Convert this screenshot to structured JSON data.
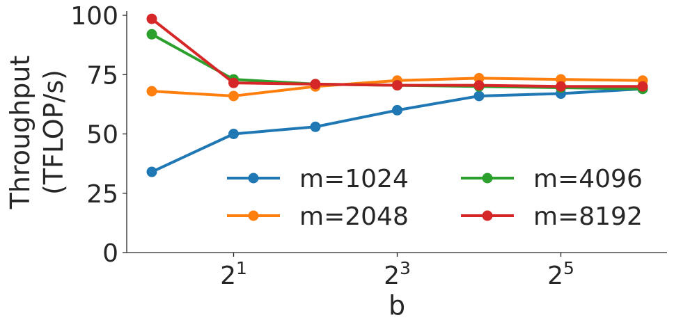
{
  "chart_data": {
    "type": "line",
    "title": "",
    "xlabel": "b",
    "ylabel": [
      "Throughput",
      "(TFLOP/s)"
    ],
    "x": [
      1,
      2,
      4,
      8,
      16,
      32,
      64
    ],
    "xscale": "log2",
    "xticks": [
      {
        "value": 2,
        "base": "2",
        "exp": "1"
      },
      {
        "value": 8,
        "base": "2",
        "exp": "3"
      },
      {
        "value": 32,
        "base": "2",
        "exp": "5"
      }
    ],
    "yticks": [
      0,
      25,
      50,
      75,
      100
    ],
    "ylim": [
      0,
      100
    ],
    "grid": false,
    "legend": {
      "placement": "lower-right",
      "columns": 2
    },
    "series": [
      {
        "name": "m=1024",
        "color": "#1f77b4",
        "values": [
          34,
          50,
          53,
          60,
          66,
          67,
          69
        ]
      },
      {
        "name": "m=2048",
        "color": "#ff7f0e",
        "values": [
          68,
          66,
          70,
          72.5,
          73.5,
          73,
          72.5
        ]
      },
      {
        "name": "m=4096",
        "color": "#2ca02c",
        "values": [
          92,
          73,
          71,
          70.5,
          70,
          69.5,
          69
        ]
      },
      {
        "name": "m=8192",
        "color": "#d62728",
        "values": [
          98.5,
          71.5,
          71,
          70.5,
          70.5,
          70,
          70
        ]
      }
    ]
  }
}
